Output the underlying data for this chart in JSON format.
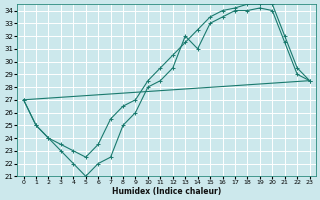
{
  "xlabel": "Humidex (Indice chaleur)",
  "background_color": "#cce8ec",
  "grid_color": "#ffffff",
  "line_color": "#1a7a6e",
  "xlim": [
    -0.5,
    23.5
  ],
  "ylim": [
    21,
    34.5
  ],
  "yticks": [
    21,
    22,
    23,
    24,
    25,
    26,
    27,
    28,
    29,
    30,
    31,
    32,
    33,
    34
  ],
  "xticks": [
    0,
    1,
    2,
    3,
    4,
    5,
    6,
    7,
    8,
    9,
    10,
    11,
    12,
    13,
    14,
    15,
    16,
    17,
    18,
    19,
    20,
    21,
    22,
    23
  ],
  "line1_x": [
    0,
    1,
    2,
    3,
    4,
    5,
    6,
    7,
    8,
    9,
    10,
    11,
    12,
    13,
    14,
    15,
    16,
    17,
    18,
    19,
    20,
    21,
    22,
    23
  ],
  "line1_y": [
    27,
    25,
    24,
    23,
    22,
    21,
    22,
    22.5,
    25,
    26,
    28,
    28.5,
    29.5,
    32,
    31,
    33,
    33.5,
    34,
    34,
    34.2,
    34,
    31.5,
    29,
    28.5
  ],
  "line2_x": [
    0,
    1,
    2,
    3,
    4,
    5,
    6,
    7,
    8,
    9,
    10,
    11,
    12,
    13,
    14,
    15,
    16,
    17,
    18,
    19,
    20,
    21,
    22,
    23
  ],
  "line2_y": [
    27,
    25,
    24,
    23.5,
    23,
    22.5,
    23.5,
    25.5,
    26.5,
    27,
    28.5,
    29.5,
    30.5,
    31.5,
    32.5,
    33.5,
    34,
    34.2,
    34.5,
    34.5,
    34.5,
    32,
    29.5,
    28.5
  ],
  "line3_x": [
    0,
    23
  ],
  "line3_y": [
    27,
    28.5
  ],
  "figsize": [
    3.2,
    2.0
  ],
  "dpi": 100
}
